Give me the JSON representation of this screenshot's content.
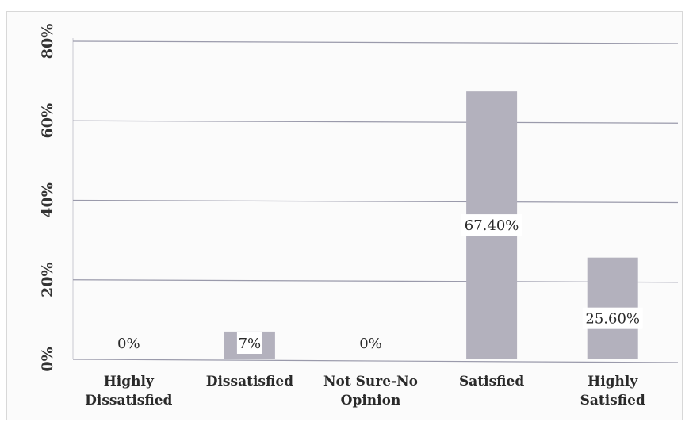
{
  "chart_data": {
    "type": "bar",
    "title": "",
    "xlabel": "",
    "ylabel": "",
    "categories": [
      [
        "Highly",
        "Dissatisfied"
      ],
      [
        "Dissatisfied"
      ],
      [
        "Not Sure-No",
        "Opinion"
      ],
      [
        "Satisfied"
      ],
      [
        "Highly",
        "Satisfied"
      ]
    ],
    "values": [
      0,
      7,
      0,
      67.4,
      25.6
    ],
    "data_labels": [
      "0%",
      "7%",
      "0%",
      "67.40%",
      "25.60%"
    ],
    "y_ticks": [
      "0%",
      "20%",
      "40%",
      "60%",
      "80%"
    ],
    "ylim": [
      0,
      80
    ],
    "grid": true,
    "colors": {
      "bar": "#b3b1bd",
      "grid": "#9a9aab",
      "text": "#2a2a2a"
    }
  }
}
